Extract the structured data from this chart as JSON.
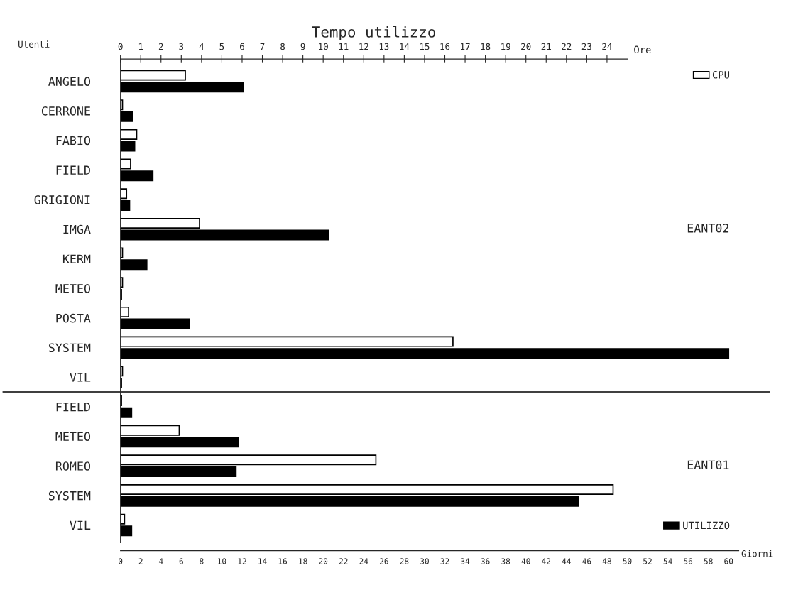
{
  "chart_data": {
    "type": "bar",
    "orientation": "horizontal",
    "title": "Tempo utilizzo",
    "ylabel": "Utenti",
    "xlabel": "Giorni",
    "x2label": "Ore",
    "categories": [
      "ANGELO",
      "CERRONE",
      "FABIO",
      "FIELD",
      "GRIGIONI",
      "IMGA",
      "KERM",
      "METEO",
      "POSTA",
      "SYSTEM",
      "VIL",
      "FIELD",
      "METEO",
      "ROMEO",
      "SYSTEM",
      "VIL"
    ],
    "series": [
      {
        "name": "CPU",
        "color": "#ffffff",
        "axis": "x2",
        "values": [
          3.2,
          0.1,
          0.8,
          0.5,
          0.3,
          3.9,
          0.1,
          0.1,
          0.4,
          16.4,
          0.1,
          0.05,
          2.9,
          12.6,
          24.3,
          0.2
        ]
      },
      {
        "name": "UTILIZZO",
        "color": "#000000",
        "values": [
          12.1,
          1.2,
          1.4,
          3.2,
          0.9,
          20.5,
          2.6,
          0.1,
          6.8,
          60,
          0.1,
          1.1,
          11.6,
          11.4,
          45.2,
          1.1
        ]
      }
    ],
    "xlim": [
      0,
      61
    ],
    "xticks": [
      0,
      2,
      4,
      6,
      8,
      10,
      12,
      14,
      16,
      18,
      20,
      22,
      24,
      26,
      28,
      30,
      32,
      34,
      36,
      38,
      40,
      42,
      44,
      46,
      48,
      50,
      52,
      54,
      56,
      58,
      60
    ],
    "x2lim": [
      0,
      25
    ],
    "x2ticks": [
      0,
      1,
      2,
      3,
      4,
      5,
      6,
      7,
      8,
      9,
      10,
      11,
      12,
      13,
      14,
      15,
      16,
      17,
      18,
      19,
      20,
      21,
      22,
      23,
      24
    ],
    "annotations": [
      "EANT02",
      "EANT01"
    ],
    "legend": "right",
    "grid": false
  }
}
